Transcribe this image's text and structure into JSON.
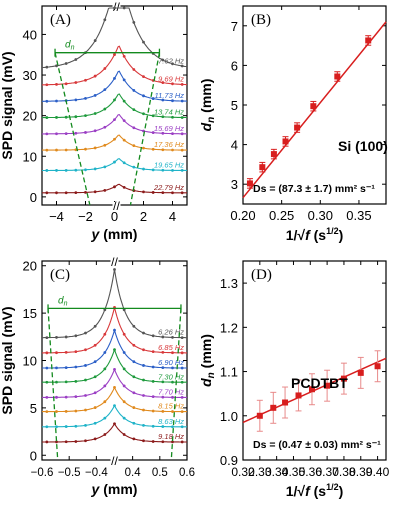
{
  "chart_data": [
    {
      "panel": "(A)",
      "type": "line",
      "ylabel": "SPD signal (mV)",
      "xlabel": "y (mm)",
      "xlim": [
        -5,
        5
      ],
      "ylim": [
        -2,
        47
      ],
      "xticks": [
        -4,
        -2,
        0,
        2,
        4
      ],
      "yticks": [
        0,
        10,
        20,
        30,
        40
      ],
      "axis_break_label": "//",
      "annotation": "dn",
      "dn_bracket": {
        "from": -4.1,
        "to": 3.1,
        "y": 35.5
      },
      "dashed_guides": [
        {
          "points": [
            [
              -4.1,
              35.5
            ],
            [
              -1.7,
              -2
            ]
          ]
        },
        {
          "points": [
            [
              3.1,
              35.5
            ],
            [
              1.1,
              -2
            ]
          ]
        }
      ],
      "series": [
        {
          "name": "7.62 Hz",
          "offset": 31.5,
          "peak": 49,
          "width": 0.55,
          "color": "#555555"
        },
        {
          "name": "9.69 Hz",
          "offset": 27.5,
          "peak": 18,
          "width": 0.5,
          "color": "#d8383a"
        },
        {
          "name": "11.73 Hz",
          "offset": 23.5,
          "peak": 14,
          "width": 0.45,
          "color": "#2b5fc7"
        },
        {
          "name": "13.74 Hz",
          "offset": 19.5,
          "peak": 11,
          "width": 0.42,
          "color": "#1e9a3c"
        },
        {
          "name": "15.69 Hz",
          "offset": 15.5,
          "peak": 9,
          "width": 0.4,
          "color": "#9b3fc4"
        },
        {
          "name": "17.36 Hz",
          "offset": 11.5,
          "peak": 7,
          "width": 0.38,
          "color": "#e08a1e"
        },
        {
          "name": "19.65 Hz",
          "offset": 6.5,
          "peak": 5.5,
          "width": 0.36,
          "color": "#1fb3c8"
        },
        {
          "name": "22.79 Hz",
          "offset": 1.0,
          "peak": 4,
          "width": 0.34,
          "color": "#8b1a1a"
        }
      ]
    },
    {
      "panel": "(B)",
      "type": "scatter",
      "xlabel": "1/√f (s^1/2)",
      "ylabel": "dn (mm)",
      "xlim": [
        0.2,
        0.385
      ],
      "ylim": [
        2.5,
        7.5
      ],
      "xticks": [
        0.2,
        0.25,
        0.3,
        0.35
      ],
      "yticks": [
        3,
        4,
        5,
        6,
        7
      ],
      "material": "Si (100)",
      "fit_text": "Ds = (87.3 ± 1.7) mm² s⁻¹",
      "points": [
        {
          "x": 0.209,
          "y": 3.02,
          "err": 0.12
        },
        {
          "x": 0.225,
          "y": 3.43,
          "err": 0.12
        },
        {
          "x": 0.24,
          "y": 3.76,
          "err": 0.12
        },
        {
          "x": 0.255,
          "y": 4.08,
          "err": 0.12
        },
        {
          "x": 0.27,
          "y": 4.43,
          "err": 0.12
        },
        {
          "x": 0.291,
          "y": 4.97,
          "err": 0.12
        },
        {
          "x": 0.322,
          "y": 5.72,
          "err": 0.12
        },
        {
          "x": 0.362,
          "y": 6.63,
          "err": 0.12
        }
      ],
      "fit_line": [
        [
          0.2,
          2.66
        ],
        [
          0.385,
          7.1
        ]
      ],
      "color": "#d81e1e"
    },
    {
      "panel": "(C)",
      "type": "line",
      "ylabel": "SPD signal (mV)",
      "xlabel": "y (mm)",
      "xlim": [
        -0.6,
        0.6
      ],
      "ylim": [
        -0.5,
        20.5
      ],
      "xtick_labels": [
        "-0.6",
        "-0.5",
        "-0.4",
        "0.4",
        "0.5",
        "0.6"
      ],
      "yticks": [
        0,
        5,
        10,
        15,
        20
      ],
      "axis_break_label": "//",
      "annotation": "dn",
      "dn_bracket": {
        "from": -0.55,
        "to": 0.55,
        "y": 15.5
      },
      "dashed_guides": [
        {
          "points": [
            [
              -0.55,
              15.5
            ],
            [
              -0.47,
              -0.5
            ]
          ]
        },
        {
          "points": [
            [
              0.55,
              15.5
            ],
            [
              0.47,
              -0.5
            ]
          ]
        }
      ],
      "series": [
        {
          "name": "6.26 Hz",
          "offset": 12.4,
          "peak": 9,
          "color": "#555555"
        },
        {
          "name": "6.85 Hz",
          "offset": 10.8,
          "peak": 6,
          "color": "#d8383a"
        },
        {
          "name": "6.90 Hz",
          "offset": 9.2,
          "peak": 5,
          "color": "#2b5fc7"
        },
        {
          "name": "7.30 Hz",
          "offset": 7.7,
          "peak": 4.3,
          "color": "#1e9a3c"
        },
        {
          "name": "7.70 Hz",
          "offset": 6.1,
          "peak": 3.7,
          "color": "#9b3fc4"
        },
        {
          "name": "8.15 Hz",
          "offset": 4.6,
          "peak": 3.2,
          "color": "#e08a1e"
        },
        {
          "name": "8.63 Hz",
          "offset": 3.0,
          "peak": 2.8,
          "color": "#1fb3c8"
        },
        {
          "name": "9.18 Hz",
          "offset": 1.4,
          "peak": 2.4,
          "color": "#8b1a1a"
        }
      ]
    },
    {
      "panel": "(D)",
      "type": "scatter",
      "xlabel": "1/√f (s^1/2)",
      "ylabel": "dn (mm)",
      "xlim": [
        0.32,
        0.405
      ],
      "ylim": [
        0.9,
        1.35
      ],
      "xticks": [
        0.32,
        0.33,
        0.34,
        0.35,
        0.36,
        0.37,
        0.38,
        0.39,
        0.4
      ],
      "yticks": [
        0.9,
        1.0,
        1.1,
        1.2,
        1.3
      ],
      "material": "PCDTBT",
      "fit_text": "Ds = (0.47 ± 0.03) mm² s⁻¹",
      "points": [
        {
          "x": 0.33,
          "y": 1.0,
          "err": 0.035
        },
        {
          "x": 0.338,
          "y": 1.018,
          "err": 0.035
        },
        {
          "x": 0.345,
          "y": 1.03,
          "err": 0.035
        },
        {
          "x": 0.353,
          "y": 1.046,
          "err": 0.035
        },
        {
          "x": 0.361,
          "y": 1.06,
          "err": 0.035
        },
        {
          "x": 0.37,
          "y": 1.068,
          "err": 0.035
        },
        {
          "x": 0.38,
          "y": 1.084,
          "err": 0.035
        },
        {
          "x": 0.39,
          "y": 1.097,
          "err": 0.035
        },
        {
          "x": 0.4,
          "y": 1.112,
          "err": 0.035
        }
      ],
      "fit_line": [
        [
          0.32,
          0.985
        ],
        [
          0.405,
          1.13
        ]
      ],
      "color": "#d81e1e"
    }
  ]
}
